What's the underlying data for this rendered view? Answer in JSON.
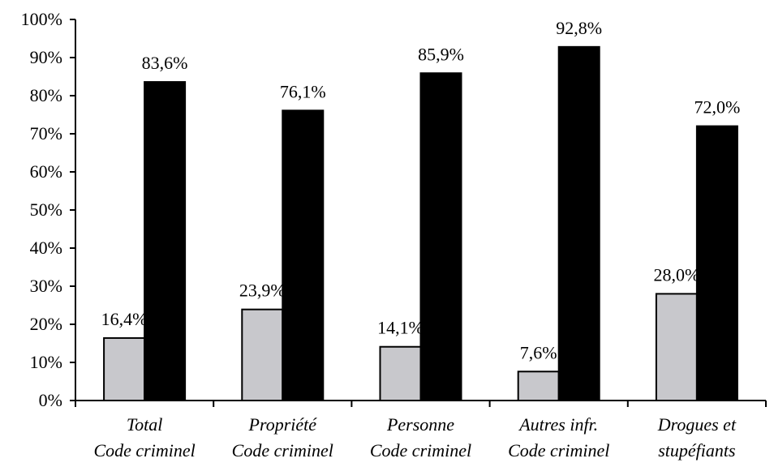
{
  "chart_data": {
    "type": "bar",
    "categories": [
      [
        "Total",
        "Code criminel"
      ],
      [
        "Propriété",
        "Code criminel"
      ],
      [
        "Personne",
        "Code criminel"
      ],
      [
        "Autres infr.",
        "Code criminel"
      ],
      [
        "Drogues et",
        "stupéfiants"
      ]
    ],
    "series": [
      {
        "fill": "#c8c8cc",
        "values": [
          16.4,
          23.9,
          14.1,
          7.6,
          28.0
        ],
        "labels": [
          "16,4%",
          "23,9%",
          "14,1%",
          "7,6%",
          "28,0%"
        ]
      },
      {
        "fill": "#000000",
        "values": [
          83.6,
          76.1,
          85.9,
          92.8,
          72.0
        ],
        "labels": [
          "83,6%",
          "76,1%",
          "85,9%",
          "92,8%",
          "72,0%"
        ]
      }
    ],
    "y_ticks": [
      "0%",
      "10%",
      "20%",
      "30%",
      "40%",
      "50%",
      "60%",
      "70%",
      "80%",
      "90%",
      "100%"
    ],
    "ylim": [
      0,
      100
    ],
    "grid": false,
    "legend": "none"
  }
}
